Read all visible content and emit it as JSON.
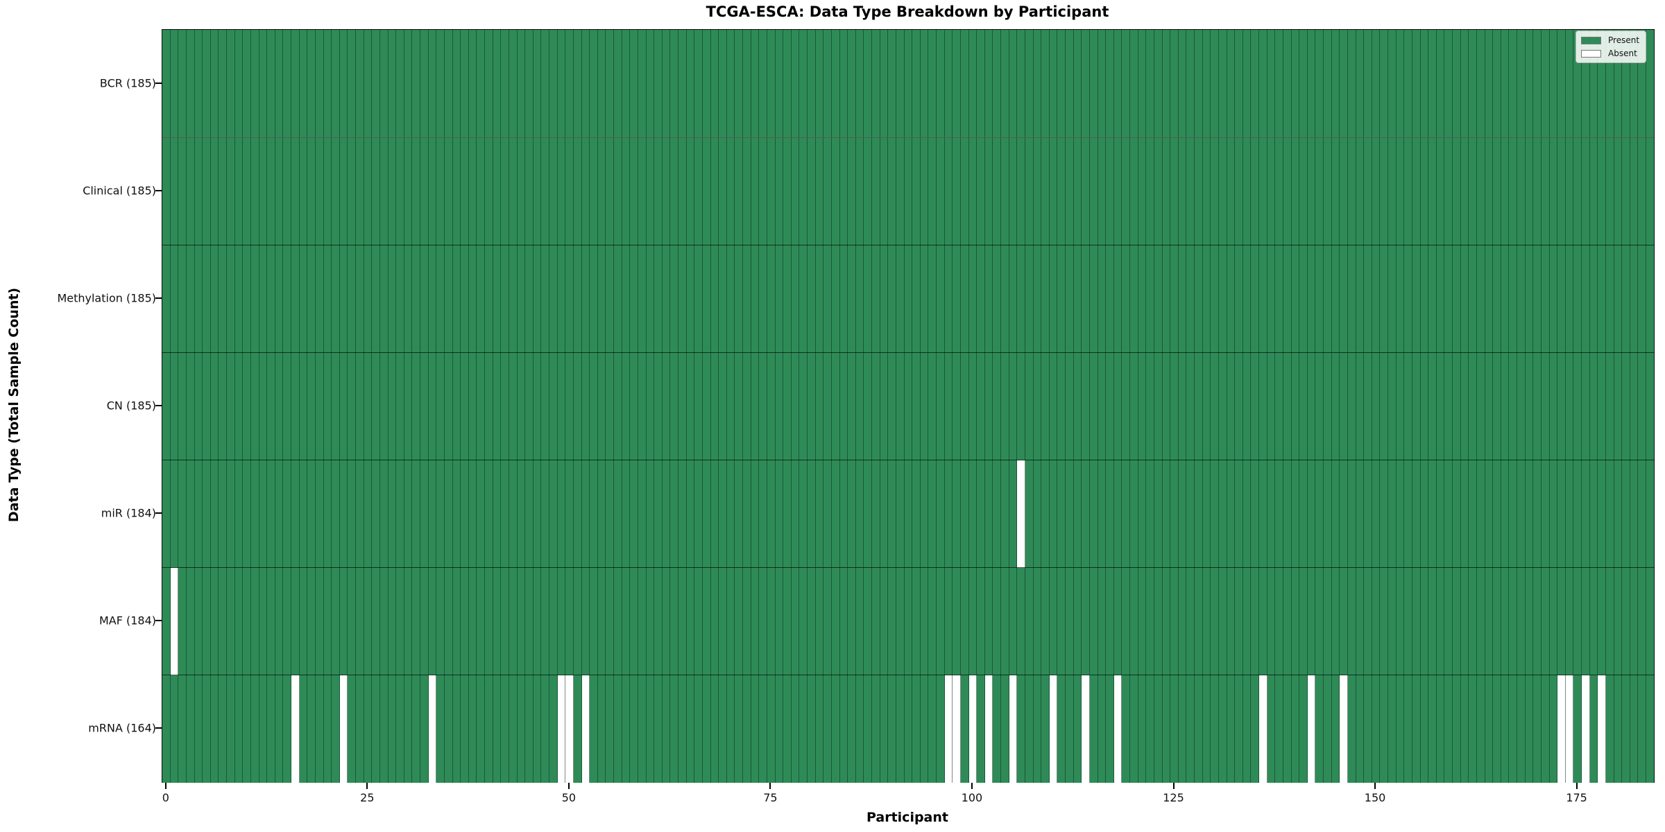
{
  "figure_title": "TCGA-ESCA: Data Type Breakdown by Participant",
  "legend": {
    "items": [
      {
        "label": "Present",
        "color": "#2e8b57"
      },
      {
        "label": "Absent",
        "color": "#ffffff"
      }
    ]
  },
  "chart_data": {
    "type": "heatmap",
    "title": "TCGA-ESCA: Data Type Breakdown by Participant",
    "xlabel": "Participant",
    "ylabel": "Data Type (Total Sample Count)",
    "x_ticks": [
      0,
      25,
      50,
      75,
      100,
      125,
      150,
      175
    ],
    "x_range": [
      -0.5,
      184.5
    ],
    "n_participants": 185,
    "grid": "cell-edges",
    "legend_position": "upper right",
    "present_color": "#2e8b57",
    "absent_color": "#ffffff",
    "rows": [
      {
        "label": "BCR (185)",
        "data_type": "BCR",
        "total_count": 185,
        "absent_participants": []
      },
      {
        "label": "Clinical (185)",
        "data_type": "Clinical",
        "total_count": 185,
        "absent_participants": []
      },
      {
        "label": "Methylation (185)",
        "data_type": "Methylation",
        "total_count": 185,
        "absent_participants": []
      },
      {
        "label": "CN (185)",
        "data_type": "CN",
        "total_count": 185,
        "absent_participants": []
      },
      {
        "label": "miR (184)",
        "data_type": "miR",
        "total_count": 184,
        "absent_participants": [
          106
        ]
      },
      {
        "label": "MAF (184)",
        "data_type": "MAF",
        "total_count": 184,
        "absent_participants": [
          1
        ]
      },
      {
        "label": "mRNA (164)",
        "data_type": "mRNA",
        "total_count": 164,
        "absent_participants": [
          16,
          22,
          33,
          49,
          50,
          52,
          97,
          98,
          100,
          102,
          105,
          110,
          114,
          118,
          136,
          142,
          146,
          173,
          174,
          176,
          178
        ]
      }
    ]
  }
}
